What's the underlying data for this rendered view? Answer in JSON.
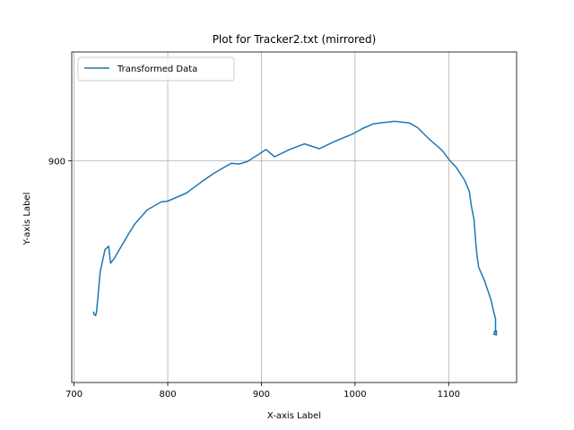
{
  "chart_data": {
    "type": "line",
    "title": "Plot for Tracker2.txt (mirrored)",
    "xlabel": "X-axis Label",
    "ylabel": "Y-axis Label",
    "xlim": [
      697.5,
      1172.5
    ],
    "ylim": [
      625,
      1035
    ],
    "xticks": [
      700,
      800,
      900,
      1000,
      1100
    ],
    "xtick_labels": [
      "700",
      "800",
      "900",
      "1000",
      "1100"
    ],
    "yticks": [
      900
    ],
    "ytick_labels": [
      "900"
    ],
    "grid": true,
    "legend": {
      "position": "upper-left"
    },
    "colors": {
      "series": "#1f77b4",
      "grid": "#b0b0b0",
      "legend_border": "#cccccc"
    },
    "series": [
      {
        "name": "Transformed Data",
        "points": [
          [
            721,
            713
          ],
          [
            721,
            710
          ],
          [
            723,
            708
          ],
          [
            724,
            713
          ],
          [
            728,
            763
          ],
          [
            733,
            790
          ],
          [
            737,
            794
          ],
          [
            739,
            773
          ],
          [
            743,
            779
          ],
          [
            750,
            793
          ],
          [
            758,
            809
          ],
          [
            765,
            822
          ],
          [
            778,
            839
          ],
          [
            793,
            849
          ],
          [
            800,
            850
          ],
          [
            820,
            860
          ],
          [
            835,
            873
          ],
          [
            850,
            885
          ],
          [
            868,
            897
          ],
          [
            876,
            896
          ],
          [
            885,
            899
          ],
          [
            905,
            914
          ],
          [
            914,
            905
          ],
          [
            930,
            914
          ],
          [
            946,
            921
          ],
          [
            962,
            915
          ],
          [
            978,
            924
          ],
          [
            997,
            933
          ],
          [
            1008,
            940
          ],
          [
            1020,
            946
          ],
          [
            1035,
            948
          ],
          [
            1042,
            949
          ],
          [
            1058,
            947
          ],
          [
            1067,
            941
          ],
          [
            1080,
            926
          ],
          [
            1093,
            913
          ],
          [
            1100,
            902
          ],
          [
            1108,
            892
          ],
          [
            1117,
            876
          ],
          [
            1122,
            862
          ],
          [
            1124,
            845
          ],
          [
            1127,
            827
          ],
          [
            1129,
            797
          ],
          [
            1130,
            785
          ],
          [
            1132,
            768
          ],
          [
            1138,
            752
          ],
          [
            1145,
            728
          ],
          [
            1148,
            713
          ],
          [
            1150,
            704
          ],
          [
            1150,
            690
          ],
          [
            1149,
            686
          ],
          [
            1148,
            685
          ],
          [
            1151,
            684
          ],
          [
            1151,
            689
          ],
          [
            1148,
            688
          ]
        ]
      }
    ]
  }
}
